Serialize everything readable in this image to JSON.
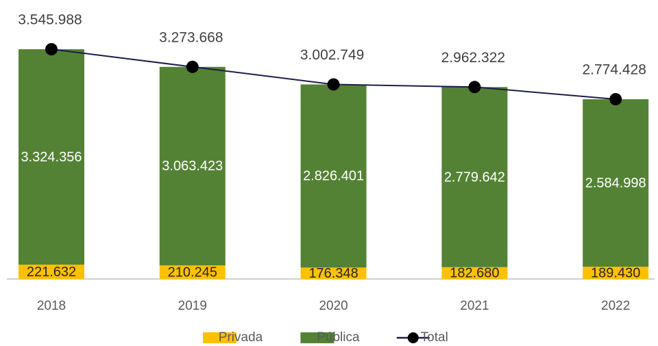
{
  "chart_data": {
    "type": "bar",
    "categories": [
      "2018",
      "2019",
      "2020",
      "2021",
      "2022"
    ],
    "stacked": true,
    "series": [
      {
        "name": "Privada",
        "color": "#ffc000",
        "values": [
          221632,
          210245,
          176348,
          182680,
          189430
        ],
        "value_labels": [
          "221.632",
          "210.245",
          "176.348",
          "182.680",
          "189.430"
        ]
      },
      {
        "name": "Pública",
        "color": "#548235",
        "values": [
          3324356,
          3063423,
          2826401,
          2779642,
          2584998
        ],
        "value_labels": [
          "3.324.356",
          "3.063.423",
          "2.826.401",
          "2.779.642",
          "2.584.998"
        ]
      },
      {
        "name": "Total",
        "type": "line",
        "color": "#1c1c4a",
        "marker_color": "#000000",
        "values": [
          3545988,
          3273668,
          3002749,
          2962322,
          2774428
        ],
        "value_labels": [
          "3.545.988",
          "3.273.668",
          "3.002.749",
          "2.962.322",
          "2.774.428"
        ]
      }
    ],
    "legend": "bottom"
  }
}
